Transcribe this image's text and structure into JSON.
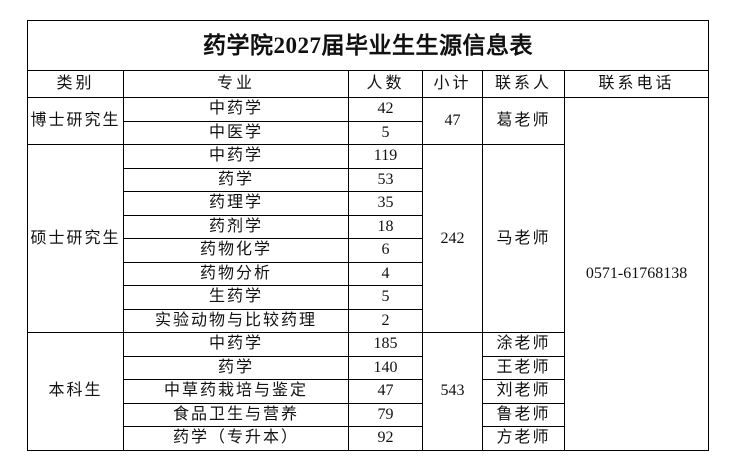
{
  "title": "药学院2027届毕业生生源信息表",
  "headers": {
    "category": "类别",
    "major": "专业",
    "count": "人数",
    "subtotal": "小计",
    "contact": "联系人",
    "phone": "联系电话"
  },
  "phone": "0571-61768138",
  "groups": {
    "doctor": {
      "category": "博士研究生",
      "subtotal": "47",
      "contact": "葛老师",
      "rows": [
        {
          "major": "中药学",
          "count": "42"
        },
        {
          "major": "中医学",
          "count": "5"
        }
      ]
    },
    "master": {
      "category": "硕士研究生",
      "subtotal": "242",
      "contact": "马老师",
      "rows": [
        {
          "major": "中药学",
          "count": "119"
        },
        {
          "major": "药学",
          "count": "53"
        },
        {
          "major": "药理学",
          "count": "35"
        },
        {
          "major": "药剂学",
          "count": "18"
        },
        {
          "major": "药物化学",
          "count": "6"
        },
        {
          "major": "药物分析",
          "count": "4"
        },
        {
          "major": "生药学",
          "count": "5"
        },
        {
          "major": "实验动物与比较药理",
          "count": "2"
        }
      ]
    },
    "undergrad": {
      "category": "本科生",
      "subtotal": "543",
      "rows": [
        {
          "major": "中药学",
          "count": "185",
          "contact": "涂老师"
        },
        {
          "major": "药学",
          "count": "140",
          "contact": "王老师"
        },
        {
          "major": "中草药栽培与鉴定",
          "count": "47",
          "contact": "刘老师"
        },
        {
          "major": "食品卫生与营养",
          "count": "79",
          "contact": "鲁老师"
        },
        {
          "major": "药学（专升本）",
          "count": "92",
          "contact": "方老师"
        }
      ]
    }
  }
}
